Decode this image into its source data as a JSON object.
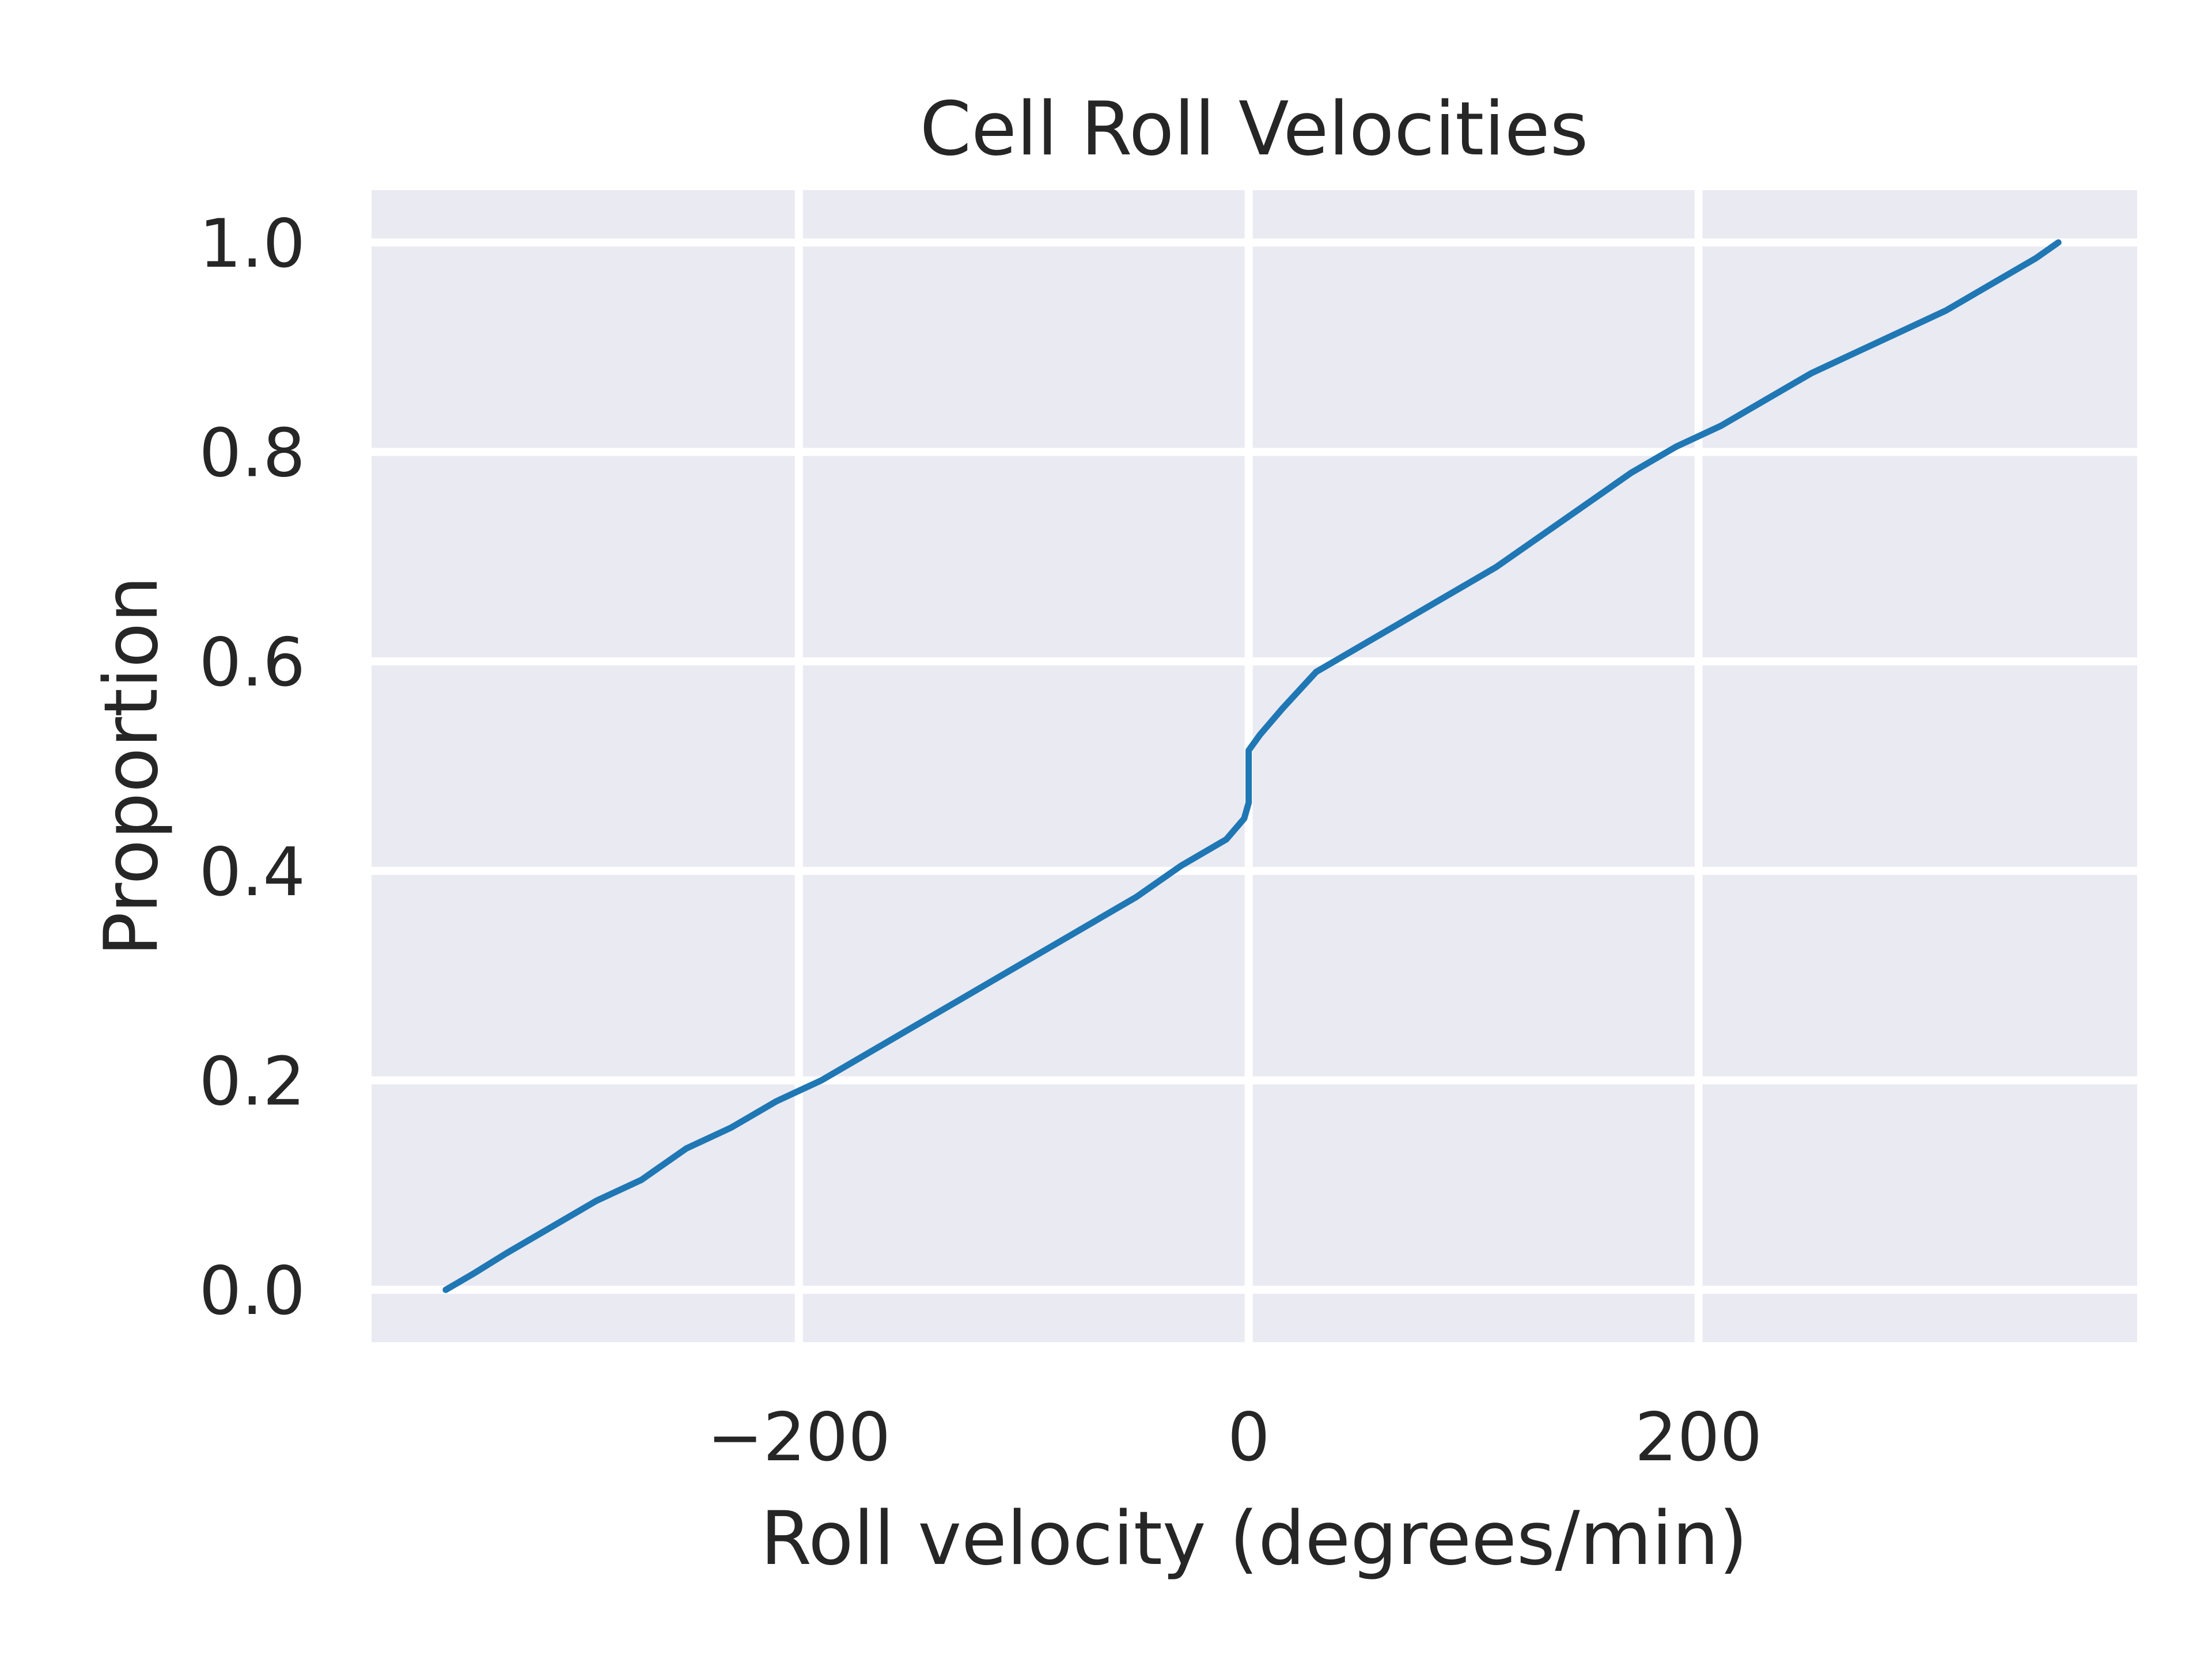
{
  "chart_data": {
    "type": "line",
    "title": "Cell Roll Velocities",
    "xlabel": "Roll velocity (degrees/min)",
    "ylabel": "Proportion",
    "xlim": [
      -390,
      395
    ],
    "ylim": [
      -0.05,
      1.05
    ],
    "x_ticks": [
      {
        "value": -200,
        "label": "−200"
      },
      {
        "value": 0,
        "label": "0"
      },
      {
        "value": 200,
        "label": "200"
      }
    ],
    "y_ticks": [
      {
        "value": 0.0,
        "label": "0.0"
      },
      {
        "value": 0.2,
        "label": "0.2"
      },
      {
        "value": 0.4,
        "label": "0.4"
      },
      {
        "value": 0.6,
        "label": "0.6"
      },
      {
        "value": 0.8,
        "label": "0.8"
      },
      {
        "value": 1.0,
        "label": "1.0"
      }
    ],
    "grid": true,
    "background_color": "#EAEAF2",
    "grid_color": "#FFFFFF",
    "series": [
      {
        "color": "#1F77B4",
        "x": [
          -357,
          -345,
          -330,
          -310,
          -290,
          -270,
          -250,
          -230,
          -210,
          -200,
          -190,
          -170,
          -150,
          -130,
          -110,
          -90,
          -70,
          -50,
          -30,
          -10,
          -2,
          0,
          0,
          5,
          15,
          30,
          50,
          70,
          90,
          110,
          130,
          150,
          170,
          190,
          210,
          230,
          250,
          270,
          290,
          310,
          330,
          350,
          360
        ],
        "y": [
          0.0,
          0.015,
          0.035,
          0.06,
          0.085,
          0.105,
          0.135,
          0.155,
          0.18,
          0.19,
          0.2,
          0.225,
          0.25,
          0.275,
          0.3,
          0.325,
          0.35,
          0.375,
          0.405,
          0.43,
          0.45,
          0.465,
          0.515,
          0.53,
          0.555,
          0.59,
          0.615,
          0.64,
          0.665,
          0.69,
          0.72,
          0.75,
          0.78,
          0.805,
          0.825,
          0.85,
          0.875,
          0.895,
          0.915,
          0.935,
          0.96,
          0.985,
          1.0
        ]
      }
    ]
  }
}
